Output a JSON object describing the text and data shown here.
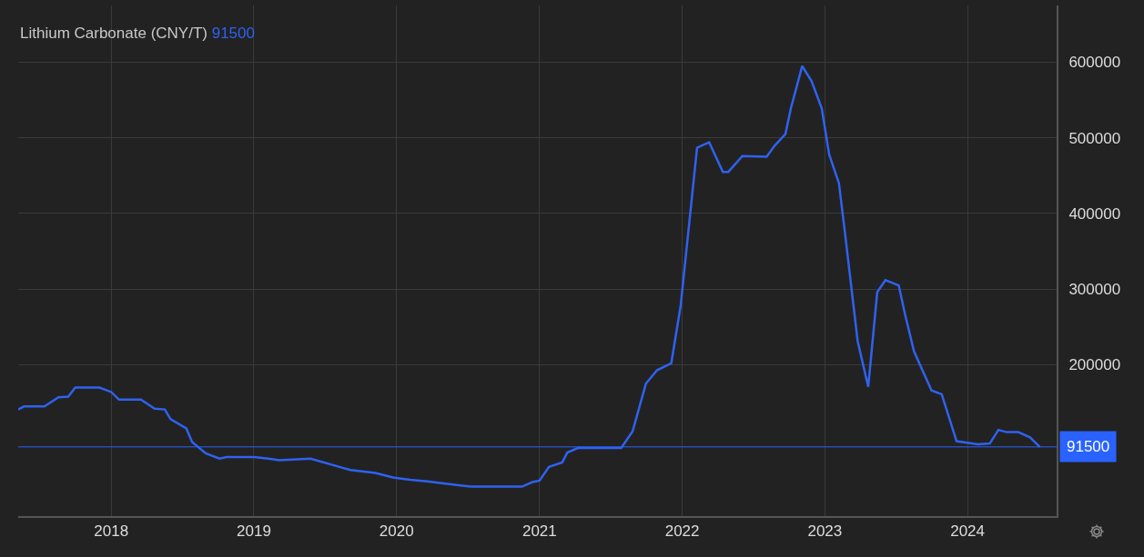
{
  "chart_data": {
    "type": "line",
    "title": "Lithium Carbonate (CNY/T)",
    "annotations": [
      "91500"
    ],
    "x": [
      "2017-05-08",
      "2017-05-23",
      "2017-07-14",
      "2017-08-19",
      "2017-09-13",
      "2017-10-01",
      "2017-12-02",
      "2018-01-01",
      "2018-01-21",
      "2018-03-18",
      "2018-04-22",
      "2018-05-18",
      "2018-06-02",
      "2018-07-12",
      "2018-07-27",
      "2018-08-31",
      "2018-10-05",
      "2018-10-23",
      "2019-01-01",
      "2019-02-07",
      "2019-03-07",
      "2019-05-26",
      "2019-08-08",
      "2019-09-05",
      "2019-11-08",
      "2019-12-23",
      "2020-02-05",
      "2020-03-19",
      "2020-07-09",
      "2020-11-17",
      "2020-12-14",
      "2021-01-01",
      "2021-01-25",
      "2021-02-28",
      "2021-03-13",
      "2021-04-09",
      "2021-07-29",
      "2021-08-27",
      "2021-09-30",
      "2021-10-29",
      "2021-12-04",
      "2021-12-28",
      "2022-02-08",
      "2022-03-11",
      "2022-04-15",
      "2022-04-29",
      "2022-06-04",
      "2022-08-05",
      "2022-08-26",
      "2022-09-22",
      "2022-10-06",
      "2022-11-04",
      "2022-11-28",
      "2022-12-24",
      "2023-01-12",
      "2023-02-06",
      "2023-02-22",
      "2023-03-26",
      "2023-04-22",
      "2023-05-15",
      "2023-06-05",
      "2023-07-09",
      "2023-07-25",
      "2023-08-17",
      "2023-09-11",
      "2023-10-01",
      "2023-10-27",
      "2023-12-04",
      "2024-01-28",
      "2024-02-27",
      "2024-03-20",
      "2024-04-10",
      "2024-05-10",
      "2024-06-09",
      "2024-07-04"
    ],
    "series": [
      {
        "color": "#2f62f0",
        "values": [
          141000,
          145000,
          145000,
          157000,
          158000,
          170000,
          170000,
          164000,
          154000,
          154000,
          142000,
          141000,
          128000,
          116000,
          98000,
          83000,
          76000,
          78000,
          78000,
          76000,
          74000,
          76000,
          65000,
          61000,
          57000,
          51000,
          48000,
          46000,
          39000,
          39000,
          45000,
          47000,
          65000,
          71000,
          84000,
          90000,
          90000,
          112000,
          175000,
          193000,
          202000,
          278000,
          487000,
          494000,
          455000,
          455000,
          476000,
          475000,
          490000,
          505000,
          539000,
          595000,
          575000,
          539000,
          478000,
          440000,
          372000,
          231000,
          171000,
          296000,
          312000,
          305000,
          267000,
          218000,
          189000,
          166000,
          161000,
          99000,
          95000,
          96000,
          114000,
          111000,
          111000,
          104000,
          91500
        ]
      }
    ],
    "xlim": [
      "2017-05-08",
      "2024-08-16"
    ],
    "xticks": [
      "2018",
      "2019",
      "2020",
      "2021",
      "2022",
      "2023",
      "2024"
    ],
    "ylim": [
      0,
      675000
    ],
    "yticks": [
      200000,
      300000,
      400000,
      500000,
      600000
    ],
    "ref_lines": [
      {
        "axis": "y",
        "value": 91500,
        "label": "91500",
        "color": "#2962ff"
      }
    ],
    "grid": true,
    "marker": "none",
    "line_style": "solid"
  }
}
